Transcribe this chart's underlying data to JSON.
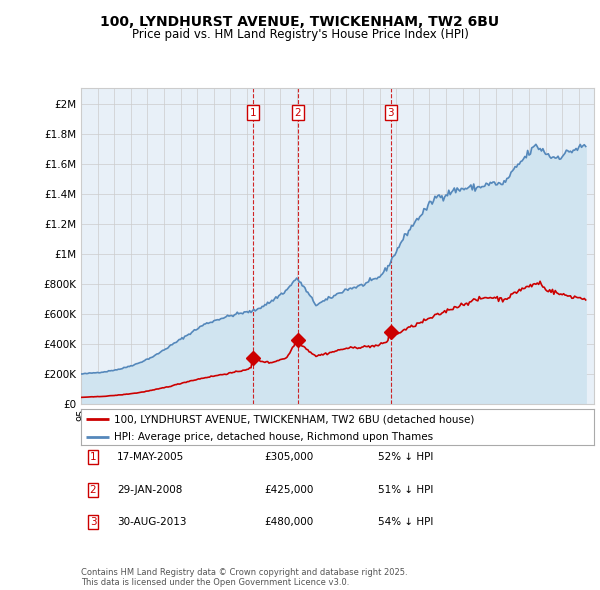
{
  "title": "100, LYNDHURST AVENUE, TWICKENHAM, TW2 6BU",
  "subtitle": "Price paid vs. HM Land Registry's House Price Index (HPI)",
  "title_fontsize": 10,
  "subtitle_fontsize": 8.5,
  "ytick_labels": [
    "£0",
    "£200K",
    "£400K",
    "£600K",
    "£800K",
    "£1M",
    "£1.2M",
    "£1.4M",
    "£1.6M",
    "£1.8M",
    "£2M"
  ],
  "ytick_values": [
    0,
    200000,
    400000,
    600000,
    800000,
    1000000,
    1200000,
    1400000,
    1600000,
    1800000,
    2000000
  ],
  "ylim": [
    0,
    2100000
  ],
  "sale_prices": [
    305000,
    425000,
    480000
  ],
  "sale_labels": [
    "1",
    "2",
    "3"
  ],
  "sale_info": [
    {
      "label": "1",
      "date": "17-MAY-2005",
      "price": "£305,000",
      "pct": "52% ↓ HPI"
    },
    {
      "label": "2",
      "date": "29-JAN-2008",
      "price": "£425,000",
      "pct": "51% ↓ HPI"
    },
    {
      "label": "3",
      "date": "30-AUG-2013",
      "price": "£480,000",
      "pct": "54% ↓ HPI"
    }
  ],
  "legend_red": "100, LYNDHURST AVENUE, TWICKENHAM, TW2 6BU (detached house)",
  "legend_blue": "HPI: Average price, detached house, Richmond upon Thames",
  "footer": "Contains HM Land Registry data © Crown copyright and database right 2025.\nThis data is licensed under the Open Government Licence v3.0.",
  "red_color": "#cc0000",
  "blue_color": "#5588bb",
  "blue_fill": "#d0e4f0",
  "vline_color": "#cc0000",
  "background_color": "#ffffff",
  "grid_color": "#cccccc",
  "plot_bg": "#e8f0f8"
}
